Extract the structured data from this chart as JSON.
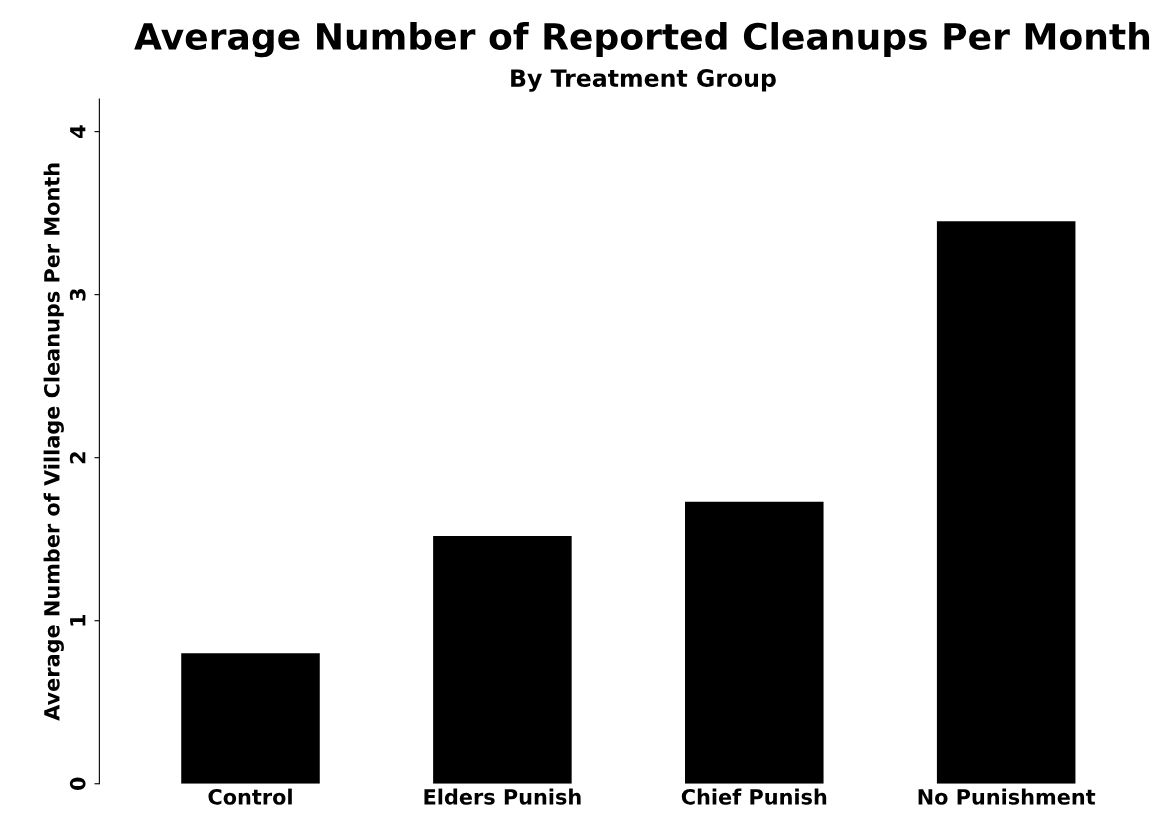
{
  "chart_data": {
    "type": "bar",
    "title": "Average Number of Reported Cleanups Per Month",
    "subtitle": "By Treatment Group",
    "ylabel": "Average Number of Village Cleanups Per Month",
    "categories": [
      "Control",
      "Elders Punish",
      "Chief Punish",
      "No Punishment"
    ],
    "values": [
      0.8,
      1.52,
      1.73,
      3.45
    ],
    "color": "#000000",
    "ylim": [
      0,
      4.2
    ],
    "yticks": [
      0,
      1,
      2,
      3,
      4
    ],
    "grid": false,
    "legend": false
  }
}
